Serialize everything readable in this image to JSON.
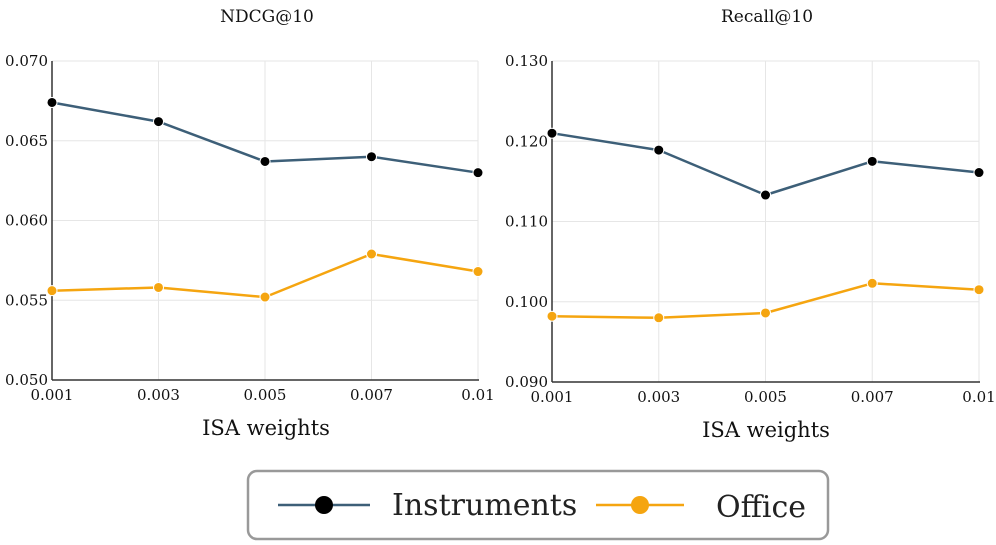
{
  "chart_data": [
    {
      "type": "line",
      "title": "NDCG@10",
      "xlabel": "ISA weights",
      "ylabel": "",
      "categories": [
        "0.001",
        "0.003",
        "0.005",
        "0.007",
        "0.01"
      ],
      "yticks": [
        "0.050",
        "0.055",
        "0.060",
        "0.065",
        "0.070"
      ],
      "ylim": [
        0.05,
        0.07
      ],
      "grid": true,
      "series": [
        {
          "name": "Instruments",
          "values": [
            0.0674,
            0.0662,
            0.0637,
            0.064,
            0.063
          ]
        },
        {
          "name": "Office",
          "values": [
            0.0556,
            0.0558,
            0.0552,
            0.0579,
            0.0568
          ]
        }
      ]
    },
    {
      "type": "line",
      "title": "Recall@10",
      "xlabel": "ISA weights",
      "ylabel": "",
      "categories": [
        "0.001",
        "0.003",
        "0.005",
        "0.007",
        "0.01"
      ],
      "yticks": [
        "0.090",
        "0.100",
        "0.110",
        "0.120",
        "0.130"
      ],
      "ylim": [
        0.09,
        0.13
      ],
      "grid": true,
      "series": [
        {
          "name": "Instruments",
          "values": [
            0.121,
            0.1189,
            0.1133,
            0.1175,
            0.1161
          ]
        },
        {
          "name": "Office",
          "values": [
            0.0982,
            0.098,
            0.0986,
            0.1023,
            0.1015
          ]
        }
      ]
    }
  ],
  "legend": {
    "placement": "bottom-center",
    "items": [
      {
        "name": "Instruments",
        "line_color": "#3d5f78",
        "marker_color": "#000000"
      },
      {
        "name": "Office",
        "line_color": "#f5a510",
        "marker_color": "#f5a510"
      }
    ]
  },
  "colors": {
    "instruments_line": "#3d5f78",
    "instruments_marker": "#000000",
    "office_line": "#f5a510",
    "office_marker": "#f5a510",
    "grid": "#e6e6e6",
    "axis": "#333333",
    "legend_border": "#999999"
  }
}
